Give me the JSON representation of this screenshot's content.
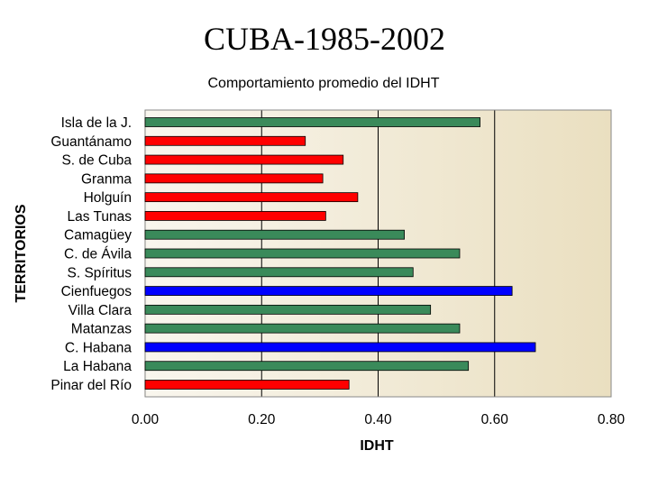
{
  "slide_title": "CUBA-1985-2002",
  "chart_data": {
    "type": "bar",
    "orientation": "horizontal",
    "title": "Comportamiento promedio del IDHT",
    "xlabel": "IDHT",
    "ylabel": "TERRITORIOS",
    "xlim": [
      0,
      0.8
    ],
    "xticks": [
      "0.00",
      "0.20",
      "0.40",
      "0.60",
      "0.80"
    ],
    "grid": true,
    "categories": [
      "Isla de la J.",
      "Guantánamo",
      "S. de Cuba",
      "Granma",
      "Holguín",
      "Las Tunas",
      "Camagüey",
      "C. de Ávila",
      "S. Spíritus",
      "Cienfuegos",
      "Villa Clara",
      "Matanzas",
      "C. Habana",
      "La Habana",
      "Pinar del Río"
    ],
    "values": [
      0.575,
      0.275,
      0.34,
      0.305,
      0.365,
      0.31,
      0.445,
      0.54,
      0.46,
      0.63,
      0.49,
      0.54,
      0.67,
      0.555,
      0.35
    ],
    "bar_colors": [
      "#3a8a5a",
      "#ff0000",
      "#ff0000",
      "#ff0000",
      "#ff0000",
      "#ff0000",
      "#3a8a5a",
      "#3a8a5a",
      "#3a8a5a",
      "#0000ff",
      "#3a8a5a",
      "#3a8a5a",
      "#0000ff",
      "#3a8a5a",
      "#ff0000"
    ]
  }
}
